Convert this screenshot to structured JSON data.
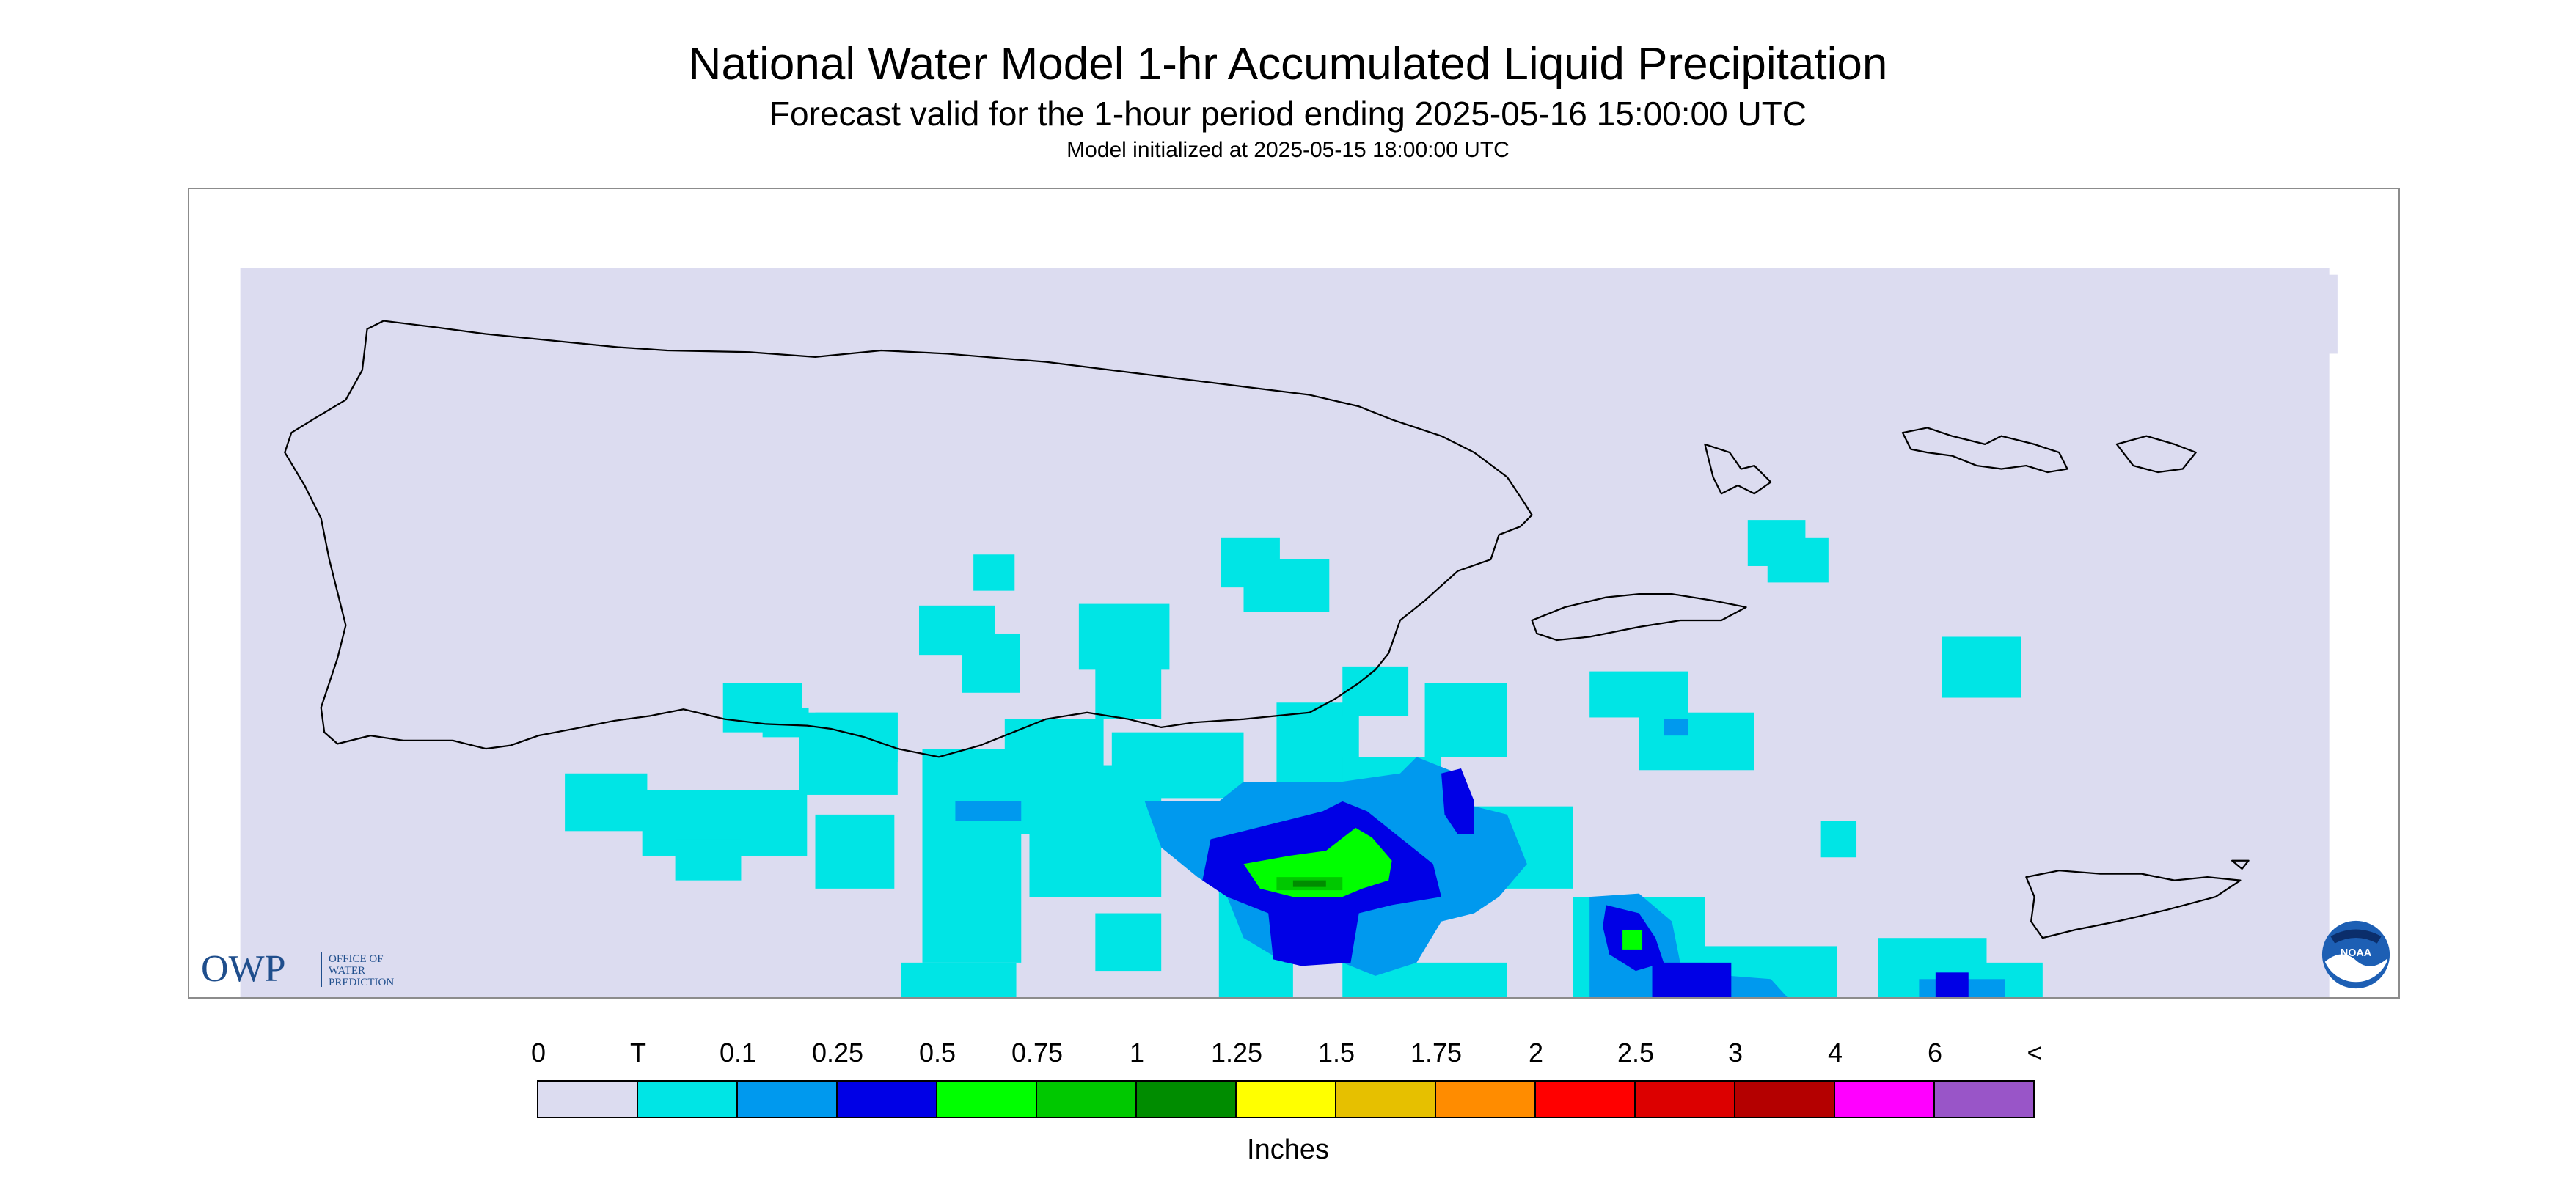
{
  "header": {
    "title": "National Water Model 1-hr Accumulated Liquid Precipitation",
    "subtitle": "Forecast valid for the 1-hour period ending 2025-05-16 15:00:00 UTC",
    "init_line": "Model initialized at 2025-05-15 18:00:00 UTC"
  },
  "map": {
    "background_color": "#dcdcf0",
    "coastline_color": "#000000",
    "features": [
      "puerto-rico",
      "vieques",
      "culebra",
      "us-virgin-islands-st-thomas-st-john",
      "st-croix"
    ]
  },
  "logos": {
    "owp": {
      "mark": "OWP",
      "lines": [
        "OFFICE OF",
        "WATER",
        "PREDICTION"
      ],
      "color": "#1f4e8c"
    },
    "noaa": {
      "mark": "NOAA",
      "color": "#1d5fb4"
    }
  },
  "legend": {
    "ticks": [
      "0",
      "T",
      "0.1",
      "0.25",
      "0.5",
      "0.75",
      "1",
      "1.25",
      "1.5",
      "1.75",
      "2",
      "2.5",
      "3",
      "4",
      "6",
      "<"
    ],
    "colors": [
      "#dcdcf0",
      "#00e5e5",
      "#0099ee",
      "#0000e6",
      "#00ff00",
      "#00c800",
      "#008c00",
      "#ffff00",
      "#e6c000",
      "#ff8c00",
      "#ff0000",
      "#dc0000",
      "#b40000",
      "#ff00ff",
      "#9955c8"
    ],
    "units": "Inches"
  }
}
